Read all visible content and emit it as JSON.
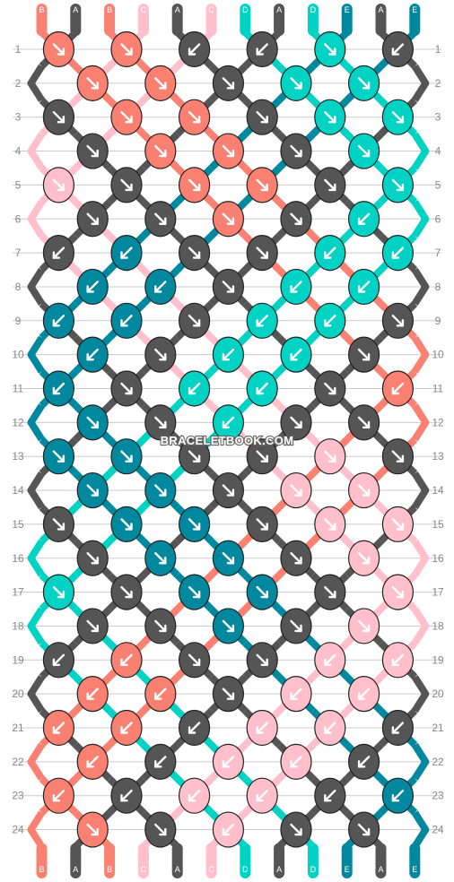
{
  "watermark": "BRACELETBOOK.COM",
  "rows": [
    "1",
    "2",
    "3",
    "4",
    "5",
    "6",
    "7",
    "8",
    "9",
    "10",
    "11",
    "12",
    "13",
    "14",
    "15",
    "16",
    "17",
    "18",
    "19",
    "20",
    "21",
    "22",
    "23",
    "24"
  ],
  "strand_letters_top": [
    "B",
    "A",
    "B",
    "C",
    "A",
    "C",
    "D",
    "A",
    "D",
    "E",
    "A",
    "E"
  ],
  "strand_letters_bottom": [
    "B",
    "A",
    "B",
    "C",
    "A",
    "C",
    "D",
    "A",
    "D",
    "E",
    "A",
    "E"
  ],
  "colors": {
    "A": "#555555",
    "B": "#fa8072",
    "C": "#ffc0cb",
    "D": "#00d2c3",
    "E": "#00899e",
    "grid": "#cccccc",
    "row_number": "#888888"
  },
  "knot_rows": [
    "BR BR AL AL DR AL",
    "BR BR AR DR DR",
    "AR BR BR AR DR DR",
    "AR BR BR AR DR",
    "CR AR BR BR AR DR",
    "AR AR BR AR DL",
    "AL EL AR AR DL DL",
    "EL EL AR DL DL",
    "EL EL AR DL DL AR",
    "EL AR DL DL AR",
    "EL AR DL DL AR BL",
    "ER AR DL AR AR",
    "ER ER AR AR CR AR",
    "ER ER AR CR CR",
    "AR ER ER AR CR CR",
    "AR ER ER AR CR",
    "DR AR ER ER AR CR",
    "AR AR ER AR CR",
    "AL BL AR AR CL CL",
    "BL BL AR CL CL",
    "BL BL AL CL CL AL",
    "BL AL CL CL AL",
    "BL AL CL CL AL EL",
    "BR AR CL AR AR"
  ]
}
